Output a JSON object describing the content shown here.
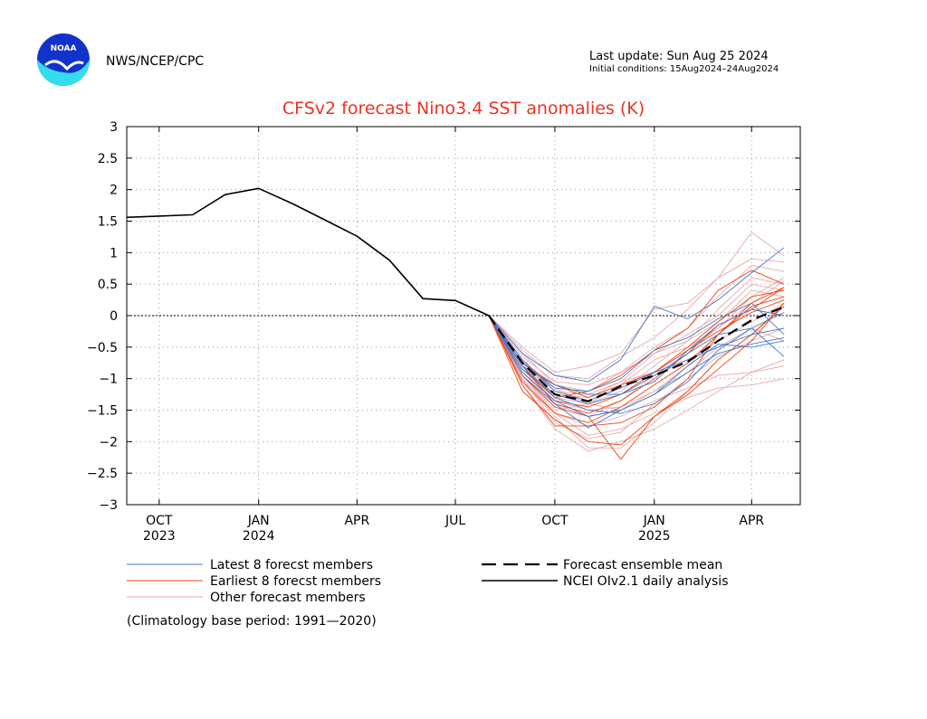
{
  "header": {
    "agency": "NWS/NCEP/CPC",
    "logo_text": "NOAA",
    "last_update": "Last update: Sun Aug 25 2024",
    "initial_conditions": "Initial conditions: 15Aug2024–24Aug2024"
  },
  "footnote": "(Climatology base period: 1991—2020)",
  "colors": {
    "title": "#ee3322",
    "latest": "#4477cc",
    "earliest": "#ee4411",
    "other": "#e8aaaa",
    "observed": "#000000",
    "mean": "#000000",
    "logo_blue": "#1133cc",
    "logo_cyan": "#33ddee"
  },
  "chart_data": {
    "type": "line",
    "title": "CFSv2 forecast Nino3.4 SST anomalies (K)",
    "xlabel": "",
    "ylabel": "",
    "x_unit": "month",
    "xlim": [
      "2023-09-01",
      "2025-05-16"
    ],
    "ylim": [
      -3,
      3
    ],
    "y_ticks": [
      3,
      2.5,
      2,
      1.5,
      1,
      0.5,
      0,
      -0.5,
      -1,
      -1.5,
      -2,
      -2.5,
      -3
    ],
    "y_tick_labels": [
      "3",
      "2.5",
      "2",
      "1.5",
      "1",
      "0.5",
      "0",
      "−0.5",
      "−1",
      "−1.5",
      "−2",
      "−2.5",
      "−3"
    ],
    "x_ticks": [
      {
        "x": "2023-10-01",
        "line1": "OCT",
        "line2": "2023"
      },
      {
        "x": "2024-01-01",
        "line1": "JAN",
        "line2": "2024"
      },
      {
        "x": "2024-04-01",
        "line1": "APR",
        "line2": ""
      },
      {
        "x": "2024-07-01",
        "line1": "JUL",
        "line2": ""
      },
      {
        "x": "2024-10-01",
        "line1": "OCT",
        "line2": ""
      },
      {
        "x": "2025-01-01",
        "line1": "JAN",
        "line2": "2025"
      },
      {
        "x": "2025-04-01",
        "line1": "APR",
        "line2": ""
      }
    ],
    "grid": true,
    "zero_line": true,
    "legend_position": "bottom",
    "legend": [
      {
        "label": "Latest 8 forecst members",
        "style": "latest"
      },
      {
        "label": "Earliest 8 forecst members",
        "style": "earliest"
      },
      {
        "label": "Other forecast members",
        "style": "other"
      },
      {
        "label": "Forecast ensemble mean",
        "style": "mean"
      },
      {
        "label": "NCEI OIv2.1 daily analysis",
        "style": "observed"
      }
    ],
    "forecast_x": [
      "2024-08-01",
      "2024-09-01",
      "2024-10-01",
      "2024-11-01",
      "2024-12-01",
      "2025-01-01",
      "2025-02-01",
      "2025-03-01",
      "2025-04-01",
      "2025-05-01"
    ],
    "series": [
      {
        "style": "observed",
        "x": [
          "2023-09-01",
          "2023-10-01",
          "2023-11-01",
          "2023-12-01",
          "2024-01-01",
          "2024-02-01",
          "2024-03-01",
          "2024-04-01",
          "2024-05-01",
          "2024-06-01",
          "2024-07-01",
          "2024-08-01"
        ],
        "values": [
          1.56,
          1.58,
          1.6,
          1.92,
          2.02,
          1.78,
          1.53,
          1.26,
          0.88,
          0.27,
          0.24,
          0.0
        ]
      },
      {
        "style": "mean",
        "values": [
          0.0,
          -0.75,
          -1.25,
          -1.36,
          -1.12,
          -0.95,
          -0.73,
          -0.4,
          -0.07,
          0.14
        ]
      },
      {
        "style": "other",
        "values": [
          0.0,
          -0.55,
          -0.95,
          -1.0,
          -0.65,
          -0.35,
          0.1,
          0.6,
          1.32,
          0.95
        ]
      },
      {
        "style": "other",
        "values": [
          0.0,
          -0.6,
          -1.1,
          -1.2,
          -0.9,
          -0.5,
          -0.2,
          0.3,
          0.8,
          0.7
        ]
      },
      {
        "style": "other",
        "values": [
          0.0,
          -0.95,
          -1.55,
          -1.75,
          -1.6,
          -1.35,
          -1.15,
          -0.95,
          -0.9,
          -0.8
        ]
      },
      {
        "style": "other",
        "values": [
          0.0,
          -1.0,
          -1.55,
          -1.9,
          -1.8,
          -1.55,
          -1.3,
          -1.15,
          -1.1,
          -1.0
        ]
      },
      {
        "style": "other",
        "values": [
          0.0,
          -1.1,
          -1.8,
          -2.15,
          -2.0,
          -1.8,
          -1.5,
          -1.2,
          -0.9,
          -0.7
        ]
      },
      {
        "style": "other",
        "values": [
          0.0,
          -1.05,
          -1.6,
          -2.1,
          -2.1,
          -1.7,
          -1.2,
          -0.7,
          -0.3,
          0.2
        ]
      },
      {
        "style": "other",
        "values": [
          0.0,
          -0.5,
          -0.9,
          -0.8,
          -0.6,
          0.1,
          0.2,
          0.6,
          0.9,
          0.85
        ]
      },
      {
        "style": "other",
        "values": [
          0.0,
          -0.7,
          -1.3,
          -1.4,
          -1.1,
          -0.7,
          -0.5,
          -0.2,
          0.2,
          0.55
        ]
      },
      {
        "style": "other",
        "values": [
          0.0,
          -0.8,
          -1.25,
          -1.3,
          -1.05,
          -0.6,
          -0.4,
          -0.1,
          0.4,
          0.3
        ]
      },
      {
        "style": "other",
        "values": [
          0.0,
          -0.9,
          -1.4,
          -1.6,
          -1.35,
          -0.95,
          -0.7,
          -0.4,
          -0.1,
          0.2
        ]
      },
      {
        "style": "other",
        "values": [
          0.0,
          -0.85,
          -1.35,
          -1.5,
          -1.45,
          -1.2,
          -0.9,
          -0.5,
          -0.2,
          -0.4
        ]
      },
      {
        "style": "other",
        "values": [
          0.0,
          -0.65,
          -1.05,
          -1.1,
          -0.9,
          -0.6,
          -0.3,
          0.0,
          0.5,
          0.4
        ]
      },
      {
        "style": "other",
        "values": [
          0.0,
          -0.75,
          -1.2,
          -1.25,
          -1.05,
          -0.9,
          -0.55,
          -0.2,
          0.3,
          0.6
        ]
      },
      {
        "style": "other",
        "values": [
          0.0,
          -1.0,
          -1.7,
          -1.95,
          -1.85,
          -1.4,
          -1.0,
          -0.65,
          -0.4,
          -0.2
        ]
      },
      {
        "style": "other",
        "values": [
          0.0,
          -0.95,
          -1.5,
          -1.4,
          -1.2,
          -0.8,
          -0.4,
          0.1,
          0.6,
          0.5
        ]
      },
      {
        "style": "other",
        "values": [
          0.0,
          -0.7,
          -1.15,
          -1.4,
          -1.5,
          -1.2,
          -0.8,
          -0.3,
          0.1,
          0.0
        ]
      },
      {
        "style": "earliest",
        "values": [
          0.0,
          -1.1,
          -1.75,
          -1.75,
          -1.7,
          -1.45,
          -1.0,
          -0.3,
          0.2,
          0.45
        ]
      },
      {
        "style": "earliest",
        "values": [
          0.0,
          -1.2,
          -1.65,
          -2.0,
          -2.05,
          -1.6,
          -1.2,
          -0.7,
          -0.3,
          0.15
        ]
      },
      {
        "style": "earliest",
        "values": [
          0.0,
          -0.95,
          -1.45,
          -1.6,
          -2.28,
          -1.6,
          -1.25,
          -0.85,
          -0.4,
          0.2
        ]
      },
      {
        "style": "earliest",
        "values": [
          0.0,
          -0.85,
          -1.3,
          -1.2,
          -0.95,
          -0.55,
          -0.2,
          0.4,
          0.72,
          0.5
        ]
      },
      {
        "style": "earliest",
        "values": [
          0.0,
          -0.9,
          -1.35,
          -1.45,
          -1.25,
          -0.9,
          -0.5,
          -0.1,
          0.3,
          0.4
        ]
      },
      {
        "style": "earliest",
        "values": [
          0.0,
          -0.75,
          -1.1,
          -1.3,
          -1.1,
          -0.9,
          -0.55,
          -0.25,
          0.05,
          0.25
        ]
      },
      {
        "style": "earliest",
        "values": [
          0.0,
          -1.05,
          -1.55,
          -1.7,
          -1.45,
          -1.1,
          -0.75,
          -0.3,
          0.15,
          0.3
        ]
      },
      {
        "style": "earliest",
        "values": [
          0.0,
          -0.8,
          -1.4,
          -1.55,
          -1.35,
          -1.0,
          -0.6,
          -0.15,
          0.1,
          0.45
        ]
      },
      {
        "style": "latest",
        "values": [
          0.0,
          -0.6,
          -0.95,
          -1.05,
          -0.7,
          0.15,
          -0.05,
          0.25,
          0.68,
          1.08
        ]
      },
      {
        "style": "latest",
        "values": [
          0.0,
          -0.75,
          -1.15,
          -1.2,
          -1.0,
          -0.55,
          -0.35,
          -0.05,
          0.2,
          -0.3
        ]
      },
      {
        "style": "latest",
        "values": [
          0.0,
          -0.85,
          -1.25,
          -1.4,
          -1.25,
          -0.95,
          -0.6,
          -0.3,
          -0.2,
          -0.65
        ]
      },
      {
        "style": "latest",
        "values": [
          0.0,
          -0.95,
          -1.4,
          -1.78,
          -1.5,
          -1.25,
          -0.8,
          -0.45,
          -0.5,
          -0.4
        ]
      },
      {
        "style": "latest",
        "values": [
          0.0,
          -0.8,
          -1.3,
          -1.5,
          -1.55,
          -1.4,
          -1.05,
          -0.55,
          -0.2,
          0.05
        ]
      },
      {
        "style": "latest",
        "values": [
          0.0,
          -0.7,
          -1.2,
          -1.35,
          -1.15,
          -0.9,
          -0.7,
          -0.5,
          -0.3,
          -0.2
        ]
      },
      {
        "style": "latest",
        "values": [
          0.0,
          -0.9,
          -1.35,
          -1.6,
          -1.5,
          -1.25,
          -0.9,
          -0.6,
          -0.45,
          -0.35
        ]
      },
      {
        "style": "latest",
        "values": [
          0.0,
          -0.8,
          -1.1,
          -1.25,
          -1.25,
          -1.05,
          -0.55,
          -0.15,
          0.1,
          0.0
        ]
      }
    ]
  }
}
